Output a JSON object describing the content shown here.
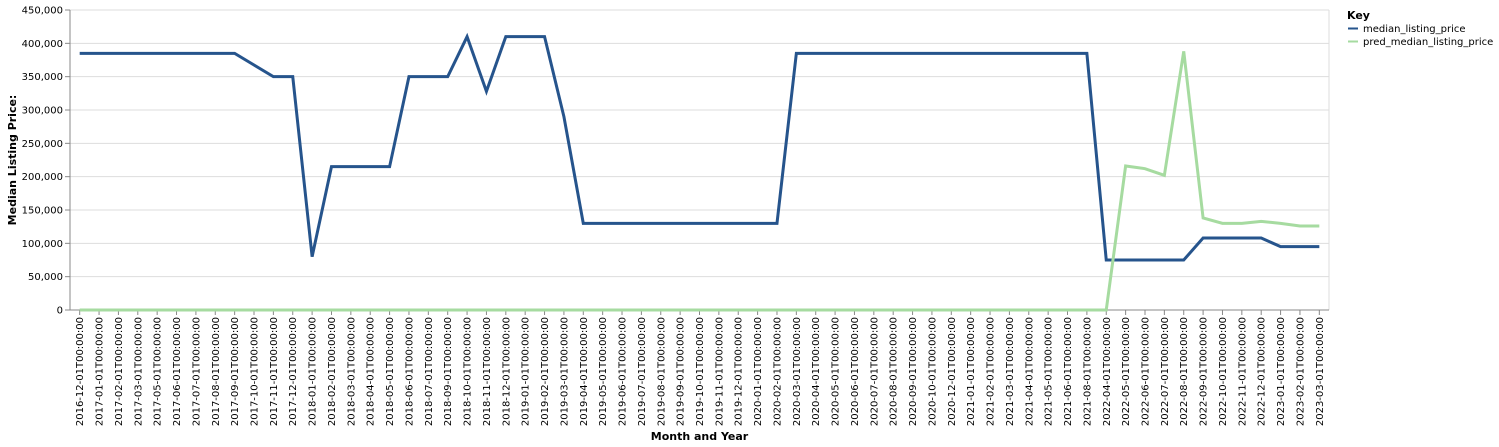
{
  "chart_data": {
    "type": "line",
    "xlabel": "Month and Year",
    "ylabel": "Median Listing Price:",
    "ylim": [
      0,
      450000
    ],
    "y_ticks": [
      0,
      50000,
      100000,
      150000,
      200000,
      250000,
      300000,
      350000,
      400000,
      450000
    ],
    "y_tick_labels": [
      "0",
      "50,000",
      "100,000",
      "150,000",
      "200,000",
      "250,000",
      "300,000",
      "350,000",
      "400,000",
      "450,000"
    ],
    "grid": true,
    "legend": {
      "title": "Key",
      "position": "top-right"
    },
    "categories": [
      "2016-12-01T00:00:00",
      "2017-01-01T00:00:00",
      "2017-02-01T00:00:00",
      "2017-03-01T00:00:00",
      "2017-05-01T00:00:00",
      "2017-06-01T00:00:00",
      "2017-07-01T00:00:00",
      "2017-08-01T00:00:00",
      "2017-09-01T00:00:00",
      "2017-10-01T00:00:00",
      "2017-11-01T00:00:00",
      "2017-12-01T00:00:00",
      "2018-01-01T00:00:00",
      "2018-02-01T00:00:00",
      "2018-03-01T00:00:00",
      "2018-04-01T00:00:00",
      "2018-05-01T00:00:00",
      "2018-06-01T00:00:00",
      "2018-07-01T00:00:00",
      "2018-09-01T00:00:00",
      "2018-10-01T00:00:00",
      "2018-11-01T00:00:00",
      "2018-12-01T00:00:00",
      "2019-01-01T00:00:00",
      "2019-02-01T00:00:00",
      "2019-03-01T00:00:00",
      "2019-04-01T00:00:00",
      "2019-05-01T00:00:00",
      "2019-06-01T00:00:00",
      "2019-07-01T00:00:00",
      "2019-08-01T00:00:00",
      "2019-09-01T00:00:00",
      "2019-10-01T00:00:00",
      "2019-11-01T00:00:00",
      "2019-12-01T00:00:00",
      "2020-01-01T00:00:00",
      "2020-02-01T00:00:00",
      "2020-03-01T00:00:00",
      "2020-04-01T00:00:00",
      "2020-05-01T00:00:00",
      "2020-06-01T00:00:00",
      "2020-07-01T00:00:00",
      "2020-08-01T00:00:00",
      "2020-09-01T00:00:00",
      "2020-10-01T00:00:00",
      "2020-12-01T00:00:00",
      "2021-01-01T00:00:00",
      "2021-02-01T00:00:00",
      "2021-03-01T00:00:00",
      "2021-04-01T00:00:00",
      "2021-05-01T00:00:00",
      "2021-06-01T00:00:00",
      "2021-08-01T00:00:00",
      "2022-04-01T00:00:00",
      "2022-05-01T00:00:00",
      "2022-06-01T00:00:00",
      "2022-07-01T00:00:00",
      "2022-08-01T00:00:00",
      "2022-09-01T00:00:00",
      "2022-10-01T00:00:00",
      "2022-11-01T00:00:00",
      "2022-12-01T00:00:00",
      "2023-01-01T00:00:00",
      "2023-02-01T00:00:00",
      "2023-03-01T00:00:00"
    ],
    "series": [
      {
        "name": "median_listing_price",
        "color": "#26548c",
        "values": [
          385000,
          385000,
          385000,
          385000,
          385000,
          385000,
          385000,
          385000,
          385000,
          367500,
          350000,
          350000,
          80000,
          215000,
          215000,
          215000,
          215000,
          350000,
          350000,
          350000,
          410000,
          328000,
          410000,
          410000,
          410000,
          290000,
          130000,
          130000,
          130000,
          130000,
          130000,
          130000,
          130000,
          130000,
          130000,
          130000,
          130000,
          385000,
          385000,
          385000,
          385000,
          385000,
          385000,
          385000,
          385000,
          385000,
          385000,
          385000,
          385000,
          385000,
          385000,
          385000,
          385000,
          75000,
          75000,
          75000,
          75000,
          75000,
          108000,
          108000,
          108000,
          108000,
          95000,
          95000,
          95000
        ]
      },
      {
        "name": "pred_median_listing_price",
        "color": "#a6dba0",
        "values": [
          0,
          0,
          0,
          0,
          0,
          0,
          0,
          0,
          0,
          0,
          0,
          0,
          0,
          0,
          0,
          0,
          0,
          0,
          0,
          0,
          0,
          0,
          0,
          0,
          0,
          0,
          0,
          0,
          0,
          0,
          0,
          0,
          0,
          0,
          0,
          0,
          0,
          0,
          0,
          0,
          0,
          0,
          0,
          0,
          0,
          0,
          0,
          0,
          0,
          0,
          0,
          0,
          0,
          0,
          216000,
          212000,
          202000,
          388000,
          138000,
          130000,
          130000,
          133000,
          130000,
          126000,
          126000
        ]
      }
    ]
  }
}
